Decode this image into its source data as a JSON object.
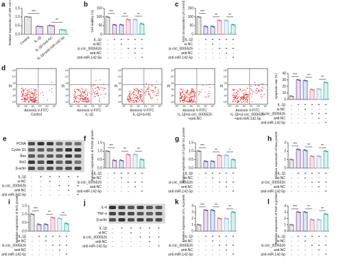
{
  "treatments": [
    {
      "label": "IL-1β",
      "signs": [
        "-",
        "+",
        "+",
        "+",
        "+",
        "+"
      ]
    },
    {
      "label": "si-NC",
      "signs": [
        "-",
        "-",
        "+",
        "-",
        "-",
        "-"
      ]
    },
    {
      "label": "si-circ_0005526",
      "signs": [
        "-",
        "-",
        "-",
        "+",
        "+",
        "+"
      ]
    },
    {
      "label": "anti-NC",
      "signs": [
        "-",
        "-",
        "-",
        "-",
        "+",
        "-"
      ]
    },
    {
      "label": "anti-miR-142-5p",
      "signs": [
        "-",
        "-",
        "-",
        "-",
        "-",
        "+"
      ]
    }
  ],
  "group_colors": [
    "#777777",
    "#7b4fa0",
    "#4a67b0",
    "#e06a8a",
    "#7fb8d8",
    "#2fb39a"
  ],
  "chart_data": [
    {
      "panel": "a",
      "type": "bar",
      "ylabel": "Relative expression of miR-142-5p",
      "categories": [
        "Control",
        "IL-1β",
        "IL-1β+anti-NC",
        "IL-1β+anti-miR-142-5p"
      ],
      "values": [
        1.0,
        0.45,
        0.5,
        0.25
      ],
      "colors": [
        "#777777",
        "#7b4fa0",
        "#7b4fa0",
        "#2fb39a"
      ],
      "ylim": [
        0,
        1.5
      ],
      "yticks": [
        {
          "value": 0,
          "label": "0.0"
        },
        {
          "value": 0.5,
          "label": "0.5"
        },
        {
          "value": 1,
          "label": "1.0"
        },
        {
          "value": 1.5,
          "label": "1.5"
        }
      ],
      "annotations": [
        "***",
        "**"
      ]
    },
    {
      "panel": "b",
      "type": "bar",
      "ylabel": "Cell viability (%)",
      "values": [
        100,
        55,
        55,
        85,
        85,
        60
      ],
      "ylim": [
        0,
        150
      ],
      "yticks": [
        0,
        50,
        100,
        150
      ],
      "annotations": [
        "***",
        "**",
        "**"
      ]
    },
    {
      "panel": "c",
      "type": "bar",
      "ylabel": "EDU incorporation (of control)",
      "values": [
        100,
        45,
        45,
        80,
        80,
        55
      ],
      "ylim": [
        0,
        150
      ],
      "yticks": [
        0,
        50,
        100,
        150
      ],
      "annotations": [
        "***",
        "**",
        "**"
      ]
    },
    {
      "panel": "",
      "type": "bar",
      "ylabel": "Apoptosis rate (%)",
      "values": [
        5,
        30,
        29,
        15,
        16,
        26
      ],
      "ylim": [
        0,
        40
      ],
      "yticks": [
        0,
        10,
        20,
        30,
        40
      ],
      "annotations": [
        "***",
        "**",
        "**"
      ]
    },
    {
      "panel": "f",
      "type": "bar",
      "ylabel": "Relative expression of PCNA protein",
      "values": [
        1.0,
        0.45,
        0.45,
        0.8,
        0.8,
        0.5
      ],
      "ylim": [
        0,
        1.5
      ],
      "yticks": [
        {
          "value": 0,
          "label": "0.0"
        },
        {
          "value": 0.5,
          "label": "0.5"
        },
        {
          "value": 1,
          "label": "1.0"
        },
        {
          "value": 1.5,
          "label": "1.5"
        }
      ],
      "annotations": [
        "***",
        "**",
        "**"
      ]
    },
    {
      "panel": "g",
      "type": "bar",
      "ylabel": "Relative expression of Cyclin D1 protein",
      "values": [
        1.0,
        0.4,
        0.4,
        0.75,
        0.75,
        0.5
      ],
      "ylim": [
        0,
        1.5
      ],
      "yticks": [
        {
          "value": 0,
          "label": "0.0"
        },
        {
          "value": 0.5,
          "label": "0.5"
        },
        {
          "value": 1,
          "label": "1.0"
        },
        {
          "value": 1.5,
          "label": "1.5"
        }
      ],
      "annotations": [
        "***",
        "**",
        "*"
      ]
    },
    {
      "panel": "h",
      "type": "bar",
      "ylabel": "Relative expression of Bax protein",
      "values": [
        1.0,
        2.2,
        2.1,
        1.4,
        1.4,
        2.0
      ],
      "ylim": [
        0,
        3
      ],
      "yticks": [
        0,
        1,
        2,
        3
      ],
      "annotations": [
        "***",
        "**",
        "**"
      ]
    },
    {
      "panel": "i",
      "type": "bar",
      "ylabel": "Relative expression of Bcl2 protein",
      "values": [
        1.0,
        0.4,
        0.4,
        0.8,
        0.75,
        0.45
      ],
      "ylim": [
        0,
        1.5
      ],
      "yticks": [
        {
          "value": 0,
          "label": "0.0"
        },
        {
          "value": 0.5,
          "label": "0.5"
        },
        {
          "value": 1,
          "label": "1.0"
        },
        {
          "value": 1.5,
          "label": "1.5"
        }
      ],
      "annotations": [
        "***",
        "**",
        "**"
      ]
    },
    {
      "panel": "k",
      "type": "bar",
      "ylabel": "Relative expression of IL-6 protein",
      "values": [
        1.0,
        3.3,
        3.3,
        2.0,
        2.0,
        3.0
      ],
      "ylim": [
        0,
        4
      ],
      "yticks": [
        0,
        1,
        2,
        3,
        4
      ],
      "annotations": [
        "***",
        "**",
        "**"
      ]
    },
    {
      "panel": "l",
      "type": "bar",
      "ylabel": "Relative expression of TNF-α protein",
      "values": [
        1.0,
        3.0,
        3.0,
        1.8,
        1.8,
        2.7
      ],
      "ylim": [
        0,
        4
      ],
      "yticks": [
        0,
        1,
        2,
        3,
        4
      ],
      "annotations": [
        "***",
        "**",
        "**"
      ]
    }
  ],
  "flow": {
    "panel": "d",
    "xlabel": "Annexin V-FITC",
    "ylabel": "PI",
    "ticks": [
      "10⁰",
      "10¹",
      "10²",
      "10³",
      "10⁴",
      "10⁵"
    ],
    "plots": [
      [
        "Control"
      ],
      [
        "IL-1β"
      ],
      [
        "IL-1β+si-NC"
      ],
      [
        "IL-1β+si-circ_0005526",
        "+anti-NC"
      ],
      [
        "IL-1β+si-circ_0005526",
        "+anti-miR-142-5p"
      ]
    ]
  },
  "blots": [
    {
      "panel": "e",
      "rows": [
        "PCNA",
        "Cyclin D1",
        "Bax",
        "Bcl2",
        "β-actin"
      ]
    },
    {
      "panel": "j",
      "rows": [
        "IL-6",
        "TNF-α",
        "β-actin"
      ]
    }
  ]
}
